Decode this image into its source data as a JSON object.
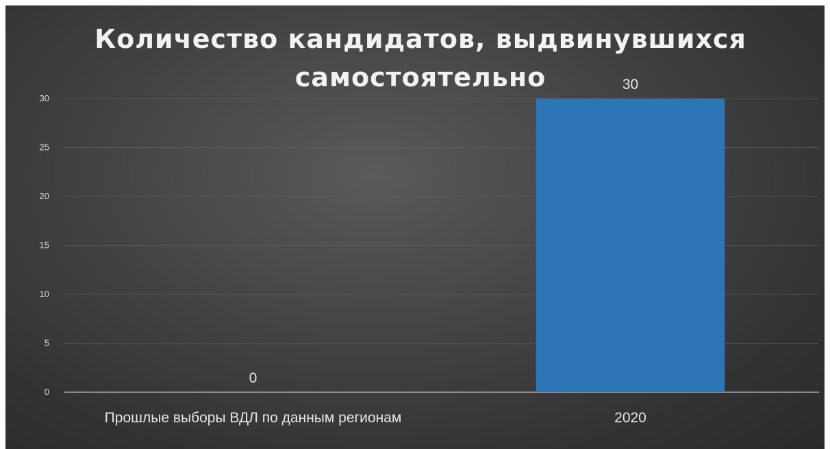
{
  "chart_data": {
    "type": "bar",
    "title_lines": [
      "Количество кандидатов, выдвинувшихся",
      "самостоятельно"
    ],
    "categories": [
      "Прошлые выборы ВДЛ по данным регионам",
      "2020"
    ],
    "values": [
      0,
      30
    ],
    "data_labels": [
      "0",
      "30"
    ],
    "yticks": [
      "0",
      "5",
      "10",
      "15",
      "20",
      "25",
      "30"
    ],
    "ylim": [
      0,
      30
    ],
    "grid": true,
    "legend": "none",
    "colors": {
      "bar": "#2e75b6",
      "background": "#404040"
    }
  }
}
